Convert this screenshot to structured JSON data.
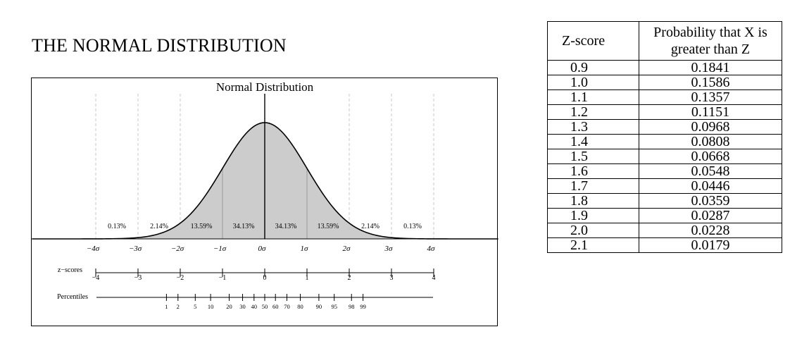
{
  "page": {
    "title": "THE NORMAL DISTRIBUTION"
  },
  "chart_data": {
    "type": "area",
    "title": "Normal Distribution",
    "curve": {
      "mean": 0,
      "sd": 1,
      "xlim": [
        -4,
        4
      ]
    },
    "sigma_labels": [
      "−4σ",
      "−3σ",
      "−2σ",
      "−1σ",
      "0σ",
      "1σ",
      "2σ",
      "3σ",
      "4σ"
    ],
    "regions": [
      {
        "from": -4,
        "to": -3,
        "label": "0.13%",
        "shaded": false
      },
      {
        "from": -3,
        "to": -2,
        "label": "2.14%",
        "shaded": false
      },
      {
        "from": -2,
        "to": -1,
        "label": "13.59%",
        "shaded": true
      },
      {
        "from": -1,
        "to": 0,
        "label": "34.13%",
        "shaded": true
      },
      {
        "from": 0,
        "to": 1,
        "label": "34.13%",
        "shaded": true
      },
      {
        "from": 1,
        "to": 2,
        "label": "13.59%",
        "shaded": true
      },
      {
        "from": 2,
        "to": 3,
        "label": "2.14%",
        "shaded": false
      },
      {
        "from": 3,
        "to": 4,
        "label": "0.13%",
        "shaded": false
      }
    ],
    "zscores": {
      "label": "z−scores",
      "ticks": [
        -4,
        -3,
        -2,
        -1,
        0,
        1,
        2,
        3,
        4
      ],
      "tick_labels": [
        "−4",
        "−3",
        "−2",
        "−1",
        "0",
        "1",
        "2",
        "3",
        "4"
      ]
    },
    "percentiles": {
      "label": "Percentiles",
      "values": [
        1,
        2,
        5,
        10,
        20,
        30,
        40,
        50,
        60,
        70,
        80,
        90,
        95,
        98,
        99
      ]
    }
  },
  "table": {
    "headers": [
      "Z-score",
      "Probability that X is greater than Z"
    ],
    "rows": [
      [
        "0.9",
        "0.1841"
      ],
      [
        "1.0",
        "0.1586"
      ],
      [
        "1.1",
        "0.1357"
      ],
      [
        "1.2",
        "0.1151"
      ],
      [
        "1.3",
        "0.0968"
      ],
      [
        "1.4",
        "0.0808"
      ],
      [
        "1.5",
        "0.0668"
      ],
      [
        "1.6",
        "0.0548"
      ],
      [
        "1.7",
        "0.0446"
      ],
      [
        "1.8",
        "0.0359"
      ],
      [
        "1.9",
        "0.0287"
      ],
      [
        "2.0",
        "0.0228"
      ],
      [
        "2.1",
        "0.0179"
      ]
    ]
  }
}
